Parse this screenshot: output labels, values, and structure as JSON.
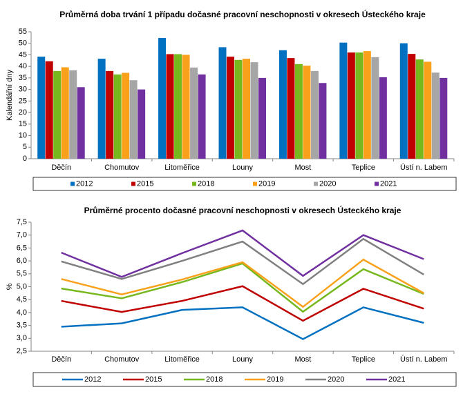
{
  "chart_data": [
    {
      "type": "bar",
      "title": "Průměrná doba trvání 1 případu dočasné pracovní neschopnosti v okresech Ústeckého kraje",
      "y_label": "Kalendářní dny",
      "categories": [
        "Děčín",
        "Chomutov",
        "Litoměřice",
        "Louny",
        "Most",
        "Teplice",
        "Ústí n. Labem"
      ],
      "series": [
        {
          "name": "2012",
          "color": "#0070c0",
          "values": [
            44.2,
            43.3,
            52.3,
            48.3,
            47.0,
            50.3,
            50.0
          ]
        },
        {
          "name": "2015",
          "color": "#c00000",
          "values": [
            42.2,
            38.0,
            45.3,
            44.2,
            43.6,
            46.0,
            45.4
          ]
        },
        {
          "name": "2018",
          "color": "#77b81f",
          "values": [
            38.0,
            36.5,
            45.3,
            42.8,
            41.0,
            46.0,
            43.0
          ]
        },
        {
          "name": "2019",
          "color": "#f9a11b",
          "values": [
            39.6,
            37.2,
            45.0,
            43.3,
            40.3,
            46.6,
            42.0
          ]
        },
        {
          "name": "2020",
          "color": "#a6a6a6",
          "values": [
            38.3,
            34.0,
            39.5,
            41.8,
            38.0,
            44.0,
            37.3
          ]
        },
        {
          "name": "2021",
          "color": "#7030a0",
          "values": [
            31.0,
            30.0,
            36.5,
            35.0,
            32.8,
            35.3,
            35.0
          ]
        }
      ],
      "ylim": [
        0,
        55
      ],
      "yticks": [
        0,
        5,
        10,
        15,
        20,
        25,
        30,
        35,
        40,
        45,
        50,
        55
      ],
      "grid": false,
      "legend": "bottom"
    },
    {
      "type": "line",
      "title": "Průměrné procento dočasné pracovní neschopnosti v okresech Ústeckého kraje",
      "y_label": "%",
      "categories": [
        "Děčín",
        "Chomutov",
        "Litoměřice",
        "Louny",
        "Most",
        "Teplice",
        "Ústí n. Labem"
      ],
      "series": [
        {
          "name": "2012",
          "color": "#0070c0",
          "values": [
            3.45,
            3.58,
            4.1,
            4.2,
            2.97,
            4.2,
            3.6
          ]
        },
        {
          "name": "2015",
          "color": "#c00000",
          "values": [
            4.45,
            4.02,
            4.45,
            5.02,
            3.68,
            4.92,
            4.15
          ]
        },
        {
          "name": "2018",
          "color": "#77b81f",
          "values": [
            4.93,
            4.55,
            5.18,
            5.9,
            4.03,
            5.68,
            4.72
          ]
        },
        {
          "name": "2019",
          "color": "#f9a11b",
          "values": [
            5.3,
            4.7,
            5.28,
            5.95,
            4.22,
            6.05,
            4.75
          ]
        },
        {
          "name": "2020",
          "color": "#808080",
          "values": [
            5.98,
            5.3,
            6.0,
            6.75,
            5.1,
            6.85,
            5.47
          ]
        },
        {
          "name": "2021",
          "color": "#7030a0",
          "values": [
            6.32,
            5.38,
            6.3,
            7.18,
            5.42,
            7.0,
            6.07
          ]
        }
      ],
      "ylim": [
        2.5,
        7.5
      ],
      "yticks": [
        {
          "value": 2.5,
          "label": "2,5"
        },
        {
          "value": 3.0,
          "label": "3,0"
        },
        {
          "value": 3.5,
          "label": "3,5"
        },
        {
          "value": 4.0,
          "label": "4,0"
        },
        {
          "value": 4.5,
          "label": "4,5"
        },
        {
          "value": 5.0,
          "label": "5,0"
        },
        {
          "value": 5.5,
          "label": "5,5"
        },
        {
          "value": 6.0,
          "label": "6,0"
        },
        {
          "value": 6.5,
          "label": "6,5"
        },
        {
          "value": 7.0,
          "label": "7,0"
        },
        {
          "value": 7.5,
          "label": "7,5"
        }
      ],
      "grid": false,
      "legend": "bottom"
    }
  ]
}
